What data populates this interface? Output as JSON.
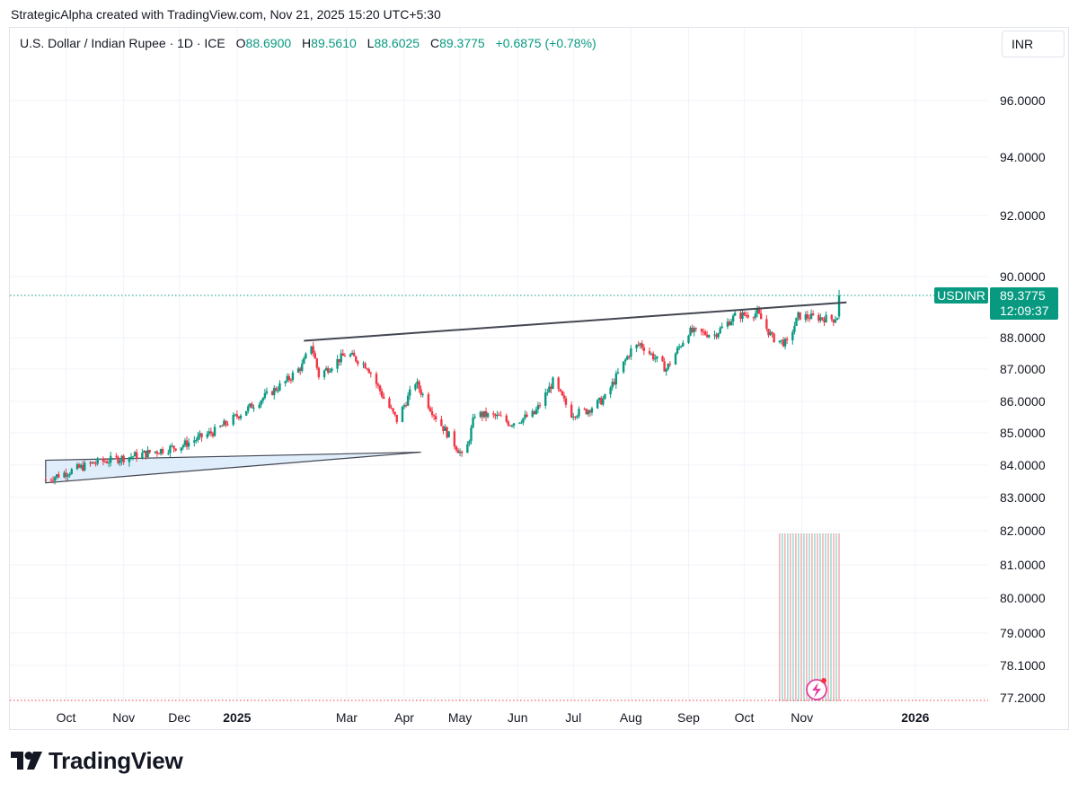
{
  "credit": "StrategicAlpha created with TradingView.com, Nov 21, 2025 15:20 UTC+5:30",
  "legend": {
    "symbol": "U.S. Dollar / Indian Rupee · 1D · ICE",
    "open_label": "O",
    "open": "88.6900",
    "high_label": "H",
    "high": "89.5610",
    "low_label": "L",
    "low": "88.6025",
    "close_label": "C",
    "close": "89.3775",
    "change": "+0.6875 (+0.78%)"
  },
  "currency": "INR",
  "price_tag": {
    "ticker": "USDINR",
    "price": "89.3775",
    "countdown": "12:09:37"
  },
  "brand": "TradingView",
  "colors": {
    "up": "#089981",
    "down": "#f23645",
    "tag": "#089981",
    "triangle_fill": "#d6e8fb",
    "trendline": "#434651"
  },
  "chart_data": {
    "type": "candlestick",
    "interval": "1D",
    "y_scale": "log",
    "ylim": [
      77.2,
      97.0
    ],
    "yticks": [
      "96.0000",
      "94.0000",
      "92.0000",
      "90.0000",
      "88.0000",
      "87.0000",
      "86.0000",
      "85.0000",
      "84.0000",
      "83.0000",
      "82.0000",
      "81.0000",
      "80.0000",
      "79.0000",
      "78.1000",
      "77.2000"
    ],
    "ytick_values": [
      96,
      94,
      92,
      90,
      88,
      87,
      86,
      85,
      84,
      83,
      82,
      81,
      80,
      79,
      78.1,
      77.2
    ],
    "xticks": [
      {
        "label": "Oct",
        "bold": false
      },
      {
        "label": "Nov",
        "bold": false
      },
      {
        "label": "Dec",
        "bold": false
      },
      {
        "label": "2025",
        "bold": true
      },
      {
        "label": "Mar",
        "bold": false
      },
      {
        "label": "Apr",
        "bold": false
      },
      {
        "label": "May",
        "bold": false
      },
      {
        "label": "Jun",
        "bold": false
      },
      {
        "label": "Jul",
        "bold": false
      },
      {
        "label": "Aug",
        "bold": false
      },
      {
        "label": "Sep",
        "bold": false
      },
      {
        "label": "Oct",
        "bold": false
      },
      {
        "label": "Nov",
        "bold": false
      },
      {
        "label": "2026",
        "bold": true
      }
    ],
    "last_price": 89.3775,
    "price_path": [
      [
        "2024-09-20",
        83.55
      ],
      [
        "2024-10-15",
        84.05
      ],
      [
        "2024-11-08",
        84.3
      ],
      [
        "2024-12-02",
        84.6
      ],
      [
        "2024-12-20",
        85.05
      ],
      [
        "2025-01-10",
        85.9
      ],
      [
        "2025-01-27",
        86.6
      ],
      [
        "2025-02-05",
        87.1
      ],
      [
        "2025-02-10",
        87.8
      ],
      [
        "2025-02-14",
        86.8
      ],
      [
        "2025-03-01",
        87.5
      ],
      [
        "2025-03-12",
        87.1
      ],
      [
        "2025-03-21",
        86.1
      ],
      [
        "2025-03-28",
        85.4
      ],
      [
        "2025-04-07",
        86.6
      ],
      [
        "2025-04-18",
        85.5
      ],
      [
        "2025-05-01",
        84.4
      ],
      [
        "2025-05-03",
        84.1
      ],
      [
        "2025-05-09",
        85.6
      ],
      [
        "2025-05-22",
        85.5
      ],
      [
        "2025-05-28",
        85.3
      ],
      [
        "2025-06-10",
        85.6
      ],
      [
        "2025-06-20",
        86.6
      ],
      [
        "2025-06-30",
        85.6
      ],
      [
        "2025-07-08",
        85.7
      ],
      [
        "2025-07-18",
        86.1
      ],
      [
        "2025-08-01",
        87.6
      ],
      [
        "2025-08-06",
        87.8
      ],
      [
        "2025-08-20",
        87.0
      ],
      [
        "2025-09-01",
        88.2
      ],
      [
        "2025-09-15",
        88.1
      ],
      [
        "2025-09-26",
        88.7
      ],
      [
        "2025-10-08",
        88.8
      ],
      [
        "2025-10-16",
        88.0
      ],
      [
        "2025-10-24",
        87.8
      ],
      [
        "2025-10-30",
        88.7
      ],
      [
        "2025-11-10",
        88.65
      ],
      [
        "2025-11-18",
        88.6
      ],
      [
        "2025-11-20",
        88.69
      ],
      [
        "2025-11-21",
        89.3775
      ]
    ],
    "trendline": [
      [
        "2025-02-06",
        87.9
      ],
      [
        "2025-11-25",
        89.15
      ]
    ],
    "triangle": [
      [
        "2024-09-20",
        84.15
      ],
      [
        "2024-09-20",
        83.45
      ],
      [
        "2025-04-10",
        84.4
      ]
    ],
    "volume_bars": {
      "start": "2025-10-20",
      "end": "2025-11-21",
      "count": 23
    }
  }
}
